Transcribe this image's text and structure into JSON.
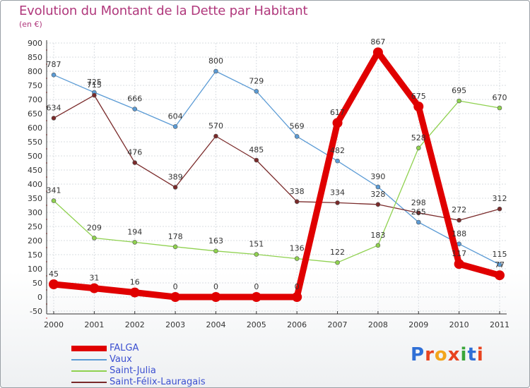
{
  "header": {
    "title": "Evolution du Montant de la Dette par Habitant",
    "unit": "(en €)"
  },
  "colors": {
    "title": "#b0387c",
    "legend_text": "#3b4fd0",
    "axis": "#333333",
    "grid": "#d9dde2"
  },
  "chart_data": {
    "type": "line",
    "title": "Evolution du Montant de la Dette par Habitant",
    "subtitle": "(en €)",
    "xlabel": "",
    "ylabel": "",
    "ylim": [
      -50,
      900
    ],
    "ytick_step": 50,
    "grid": true,
    "legend_position": "bottom-left",
    "categories": [
      "2000",
      "2001",
      "2002",
      "2003",
      "2004",
      "2005",
      "2006",
      "2007",
      "2008",
      "2009",
      "2010",
      "2011"
    ],
    "series": [
      {
        "name": "FALGA",
        "color": "#e00000",
        "width": 9,
        "values": [
          45,
          31,
          16,
          0,
          0,
          0,
          0,
          617,
          867,
          675,
          117,
          77
        ],
        "labels": [
          "45",
          "31",
          "16",
          "0",
          "0",
          "0",
          "0",
          "617",
          "867",
          "675",
          "117",
          "77"
        ]
      },
      {
        "name": "Vaux",
        "color": "#5b9bd5",
        "width": 1.3,
        "values": [
          787,
          725,
          666,
          604,
          800,
          729,
          569,
          482,
          390,
          265,
          188,
          115
        ],
        "labels": [
          "787",
          "725",
          "666",
          "604",
          "800",
          "729",
          "569",
          "482",
          "390",
          "265",
          "188",
          "115"
        ]
      },
      {
        "name": "Saint-Julia",
        "color": "#8fd14f",
        "width": 1.3,
        "values": [
          341,
          209,
          194,
          178,
          163,
          151,
          136,
          122,
          183,
          528,
          695,
          670
        ],
        "labels": [
          "341",
          "209",
          "194",
          "178",
          "163",
          "151",
          "136",
          "122",
          "183",
          "528",
          "695",
          "670"
        ]
      },
      {
        "name": "Saint-Félix-Lauragais",
        "color": "#7a2a2a",
        "width": 1.3,
        "values": [
          634,
          715,
          476,
          389,
          570,
          485,
          338,
          334,
          328,
          298,
          272,
          312
        ],
        "labels": [
          "634",
          "715",
          "476",
          "389",
          "570",
          "485",
          "338",
          "334",
          "328",
          "298",
          "272",
          "312"
        ]
      }
    ]
  },
  "logo": {
    "text": "Proxiti",
    "letter_colors": [
      "#2f6fd6",
      "#e8431f",
      "#f2a51c",
      "#e8431f",
      "#3aa63a",
      "#2f6fd6",
      "#e8431f"
    ]
  }
}
